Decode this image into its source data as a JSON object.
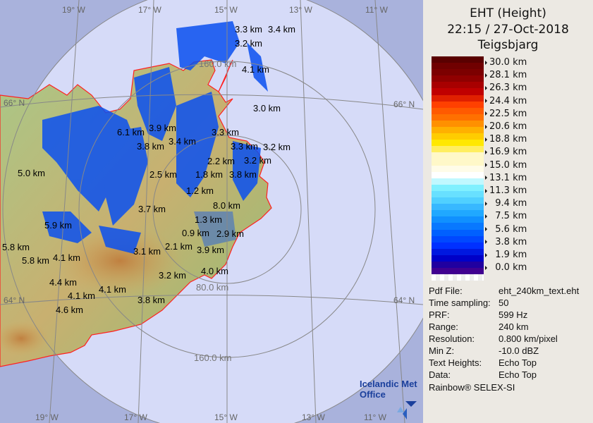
{
  "header": {
    "title": "EHT (Height)",
    "datetime": "22:15 / 27-Oct-2018",
    "station": "Teigsbjarg"
  },
  "legend": {
    "ticks": [
      "30.0 km",
      "28.1 km",
      "26.3 km",
      "24.4 km",
      "22.5 km",
      "20.6 km",
      "18.8 km",
      "16.9 km",
      "15.0 km",
      "13.1 km",
      "11.3 km",
      "  9.4 km",
      "  7.5 km",
      "  5.6 km",
      "  3.8 km",
      "  1.9 km",
      "  0.0 km"
    ],
    "colors": [
      "#5a0000",
      "#700000",
      "#7c0000",
      "#900000",
      "#a80000",
      "#c00000",
      "#e02000",
      "#ff4000",
      "#ff5a00",
      "#ff7000",
      "#ff9000",
      "#ffb000",
      "#ffcc00",
      "#ffe800",
      "#ffee60",
      "#fff8c8",
      "#fff8c8",
      "#fffce8",
      "#ffffff",
      "#c0f8ff",
      "#80f0ff",
      "#68e0ff",
      "#50d0ff",
      "#38b8ff",
      "#20a8ff",
      "#1090ff",
      "#0878ff",
      "#0060ff",
      "#0048ff",
      "#0030ff",
      "#0018e0",
      "#0000c8",
      "#2000a0",
      "#400090"
    ]
  },
  "info": [
    {
      "key": "Pdf File:",
      "value": "eht_240km_text.eht"
    },
    {
      "key": "Time sampling:",
      "value": "50"
    },
    {
      "key": "PRF:",
      "value": "599 Hz"
    },
    {
      "key": "Range:",
      "value": "240 km"
    },
    {
      "key": "Resolution:",
      "value": "0.800 km/pixel"
    },
    {
      "key": "Min Z:",
      "value": "-10.0 dBZ"
    },
    {
      "key": "Text Heights:",
      "value": "Echo Top"
    },
    {
      "key": "Data:",
      "value": "Echo Top"
    }
  ],
  "credit": "Rainbow® SELEX-SI",
  "logo": {
    "line1": "Icelandic Met",
    "line2": "Office",
    "color": "#1a3f9c"
  },
  "map": {
    "lon_labels_top": [
      "19° W",
      "17° W",
      "15° W",
      "13° W",
      "11° W"
    ],
    "lon_labels_bottom": [
      "19° W",
      "17° W",
      "15° W",
      "13° W",
      "11° W"
    ],
    "lat_labels": [
      "66° N",
      "66° N",
      "64° N",
      "64° N"
    ],
    "range_labels": [
      "80.0 km",
      "160.0 km",
      "80.0 km",
      "160.0 km"
    ],
    "echo_tops": [
      "3.3 km",
      "3.4 km",
      "3.2 km",
      "4.1 km",
      "3.0 km",
      "3.9 km",
      "6.1 km",
      "3.8 km",
      "3.4 km",
      "3.3 km",
      "3.3 km",
      "3.2 km",
      "3.2 km",
      "2.2 km",
      "3.8 km",
      "2.5 km",
      "1.8 km",
      "1.2 km",
      "5.0 km",
      "8.0 km",
      "1.3 km",
      "0.9 km",
      "3.7 km",
      "5.9 km",
      "5.8 km",
      "5.8 km",
      "4.1 km",
      "3.1 km",
      "2.1 km",
      "3.9 km",
      "2.9 km",
      "4.0 km",
      "3.2 km",
      "4.4 km",
      "4.1 km",
      "4.1 km",
      "4.6 km",
      "3.8 km"
    ],
    "colors": {
      "outside": "#a9b2dc",
      "coverage": "#d6dbf8",
      "coast": "#ff2020",
      "echo": "#0a50f0"
    }
  }
}
